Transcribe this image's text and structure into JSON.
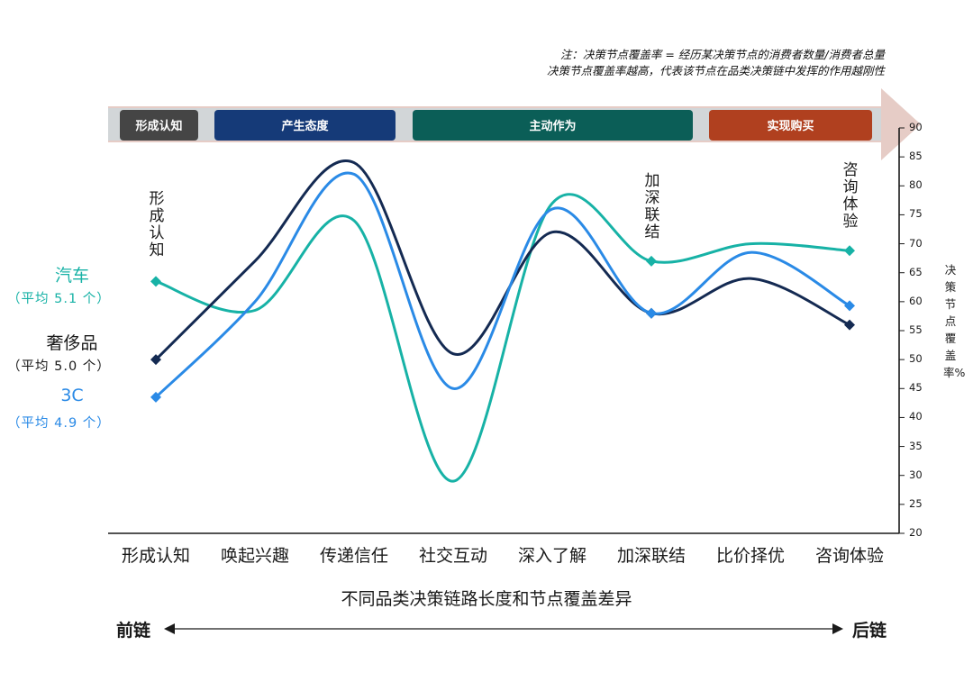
{
  "note": {
    "line1": "注：决策节点覆盖率 = 经历某决策节点的消费者数量/消费者总量",
    "line2": "决策节点覆盖率越高，代表该节点在品类决策链中发挥的作用越刚性"
  },
  "stages": [
    {
      "label": "形成认知",
      "color": "#454545"
    },
    {
      "label": "产生态度",
      "color": "#153a78"
    },
    {
      "label": "主动作为",
      "color": "#0b5e57"
    },
    {
      "label": "实现购买",
      "color": "#b0401f"
    }
  ],
  "colors": {
    "arrow": "#e6ccc6",
    "band": "#d2d6d8",
    "axis": "#1a1a1a"
  },
  "legend": [
    {
      "name": "汽车",
      "avg": "（平均 5.1 个）",
      "color": "#17b2a6"
    },
    {
      "name": "奢侈品",
      "avg": "（平均 5.0 个）",
      "color": "#1a1a1a"
    },
    {
      "name": "3C",
      "avg": "（平均 4.9 个）",
      "color": "#2a8ae6"
    }
  ],
  "node_labels": [
    "形成认知",
    "加深联结",
    "咨询体验"
  ],
  "footer": {
    "caption": "不同品类决策链路长度和节点覆盖差异",
    "left": "前链",
    "right": "后链"
  },
  "chart_data": {
    "type": "line",
    "categories": [
      "形成认知",
      "唤起兴趣",
      "传递信任",
      "社交互动",
      "深入了解",
      "加深联结",
      "比价择优",
      "咨询体验"
    ],
    "ylabel": "决策节点覆盖率%",
    "ylim": [
      20,
      90
    ],
    "yticks": [
      20,
      25,
      30,
      35,
      40,
      45,
      50,
      55,
      60,
      65,
      70,
      75,
      80,
      85,
      90
    ],
    "grid": false,
    "series": [
      {
        "name": "汽车",
        "color": "#17b2a6",
        "values": [
          63.5,
          58.5,
          74,
          29,
          77,
          67,
          70,
          68.8
        ],
        "markers": [
          0,
          5,
          7
        ]
      },
      {
        "name": "奢侈品",
        "color": "#142a52",
        "values": [
          50,
          67,
          84,
          51,
          72,
          58,
          64,
          56
        ],
        "markers": [
          0,
          5,
          7
        ]
      },
      {
        "name": "3C",
        "color": "#2a8ae6",
        "values": [
          43.5,
          60,
          82,
          45,
          76,
          58,
          68.5,
          59.3
        ],
        "markers": [
          0,
          5,
          7
        ]
      }
    ]
  }
}
